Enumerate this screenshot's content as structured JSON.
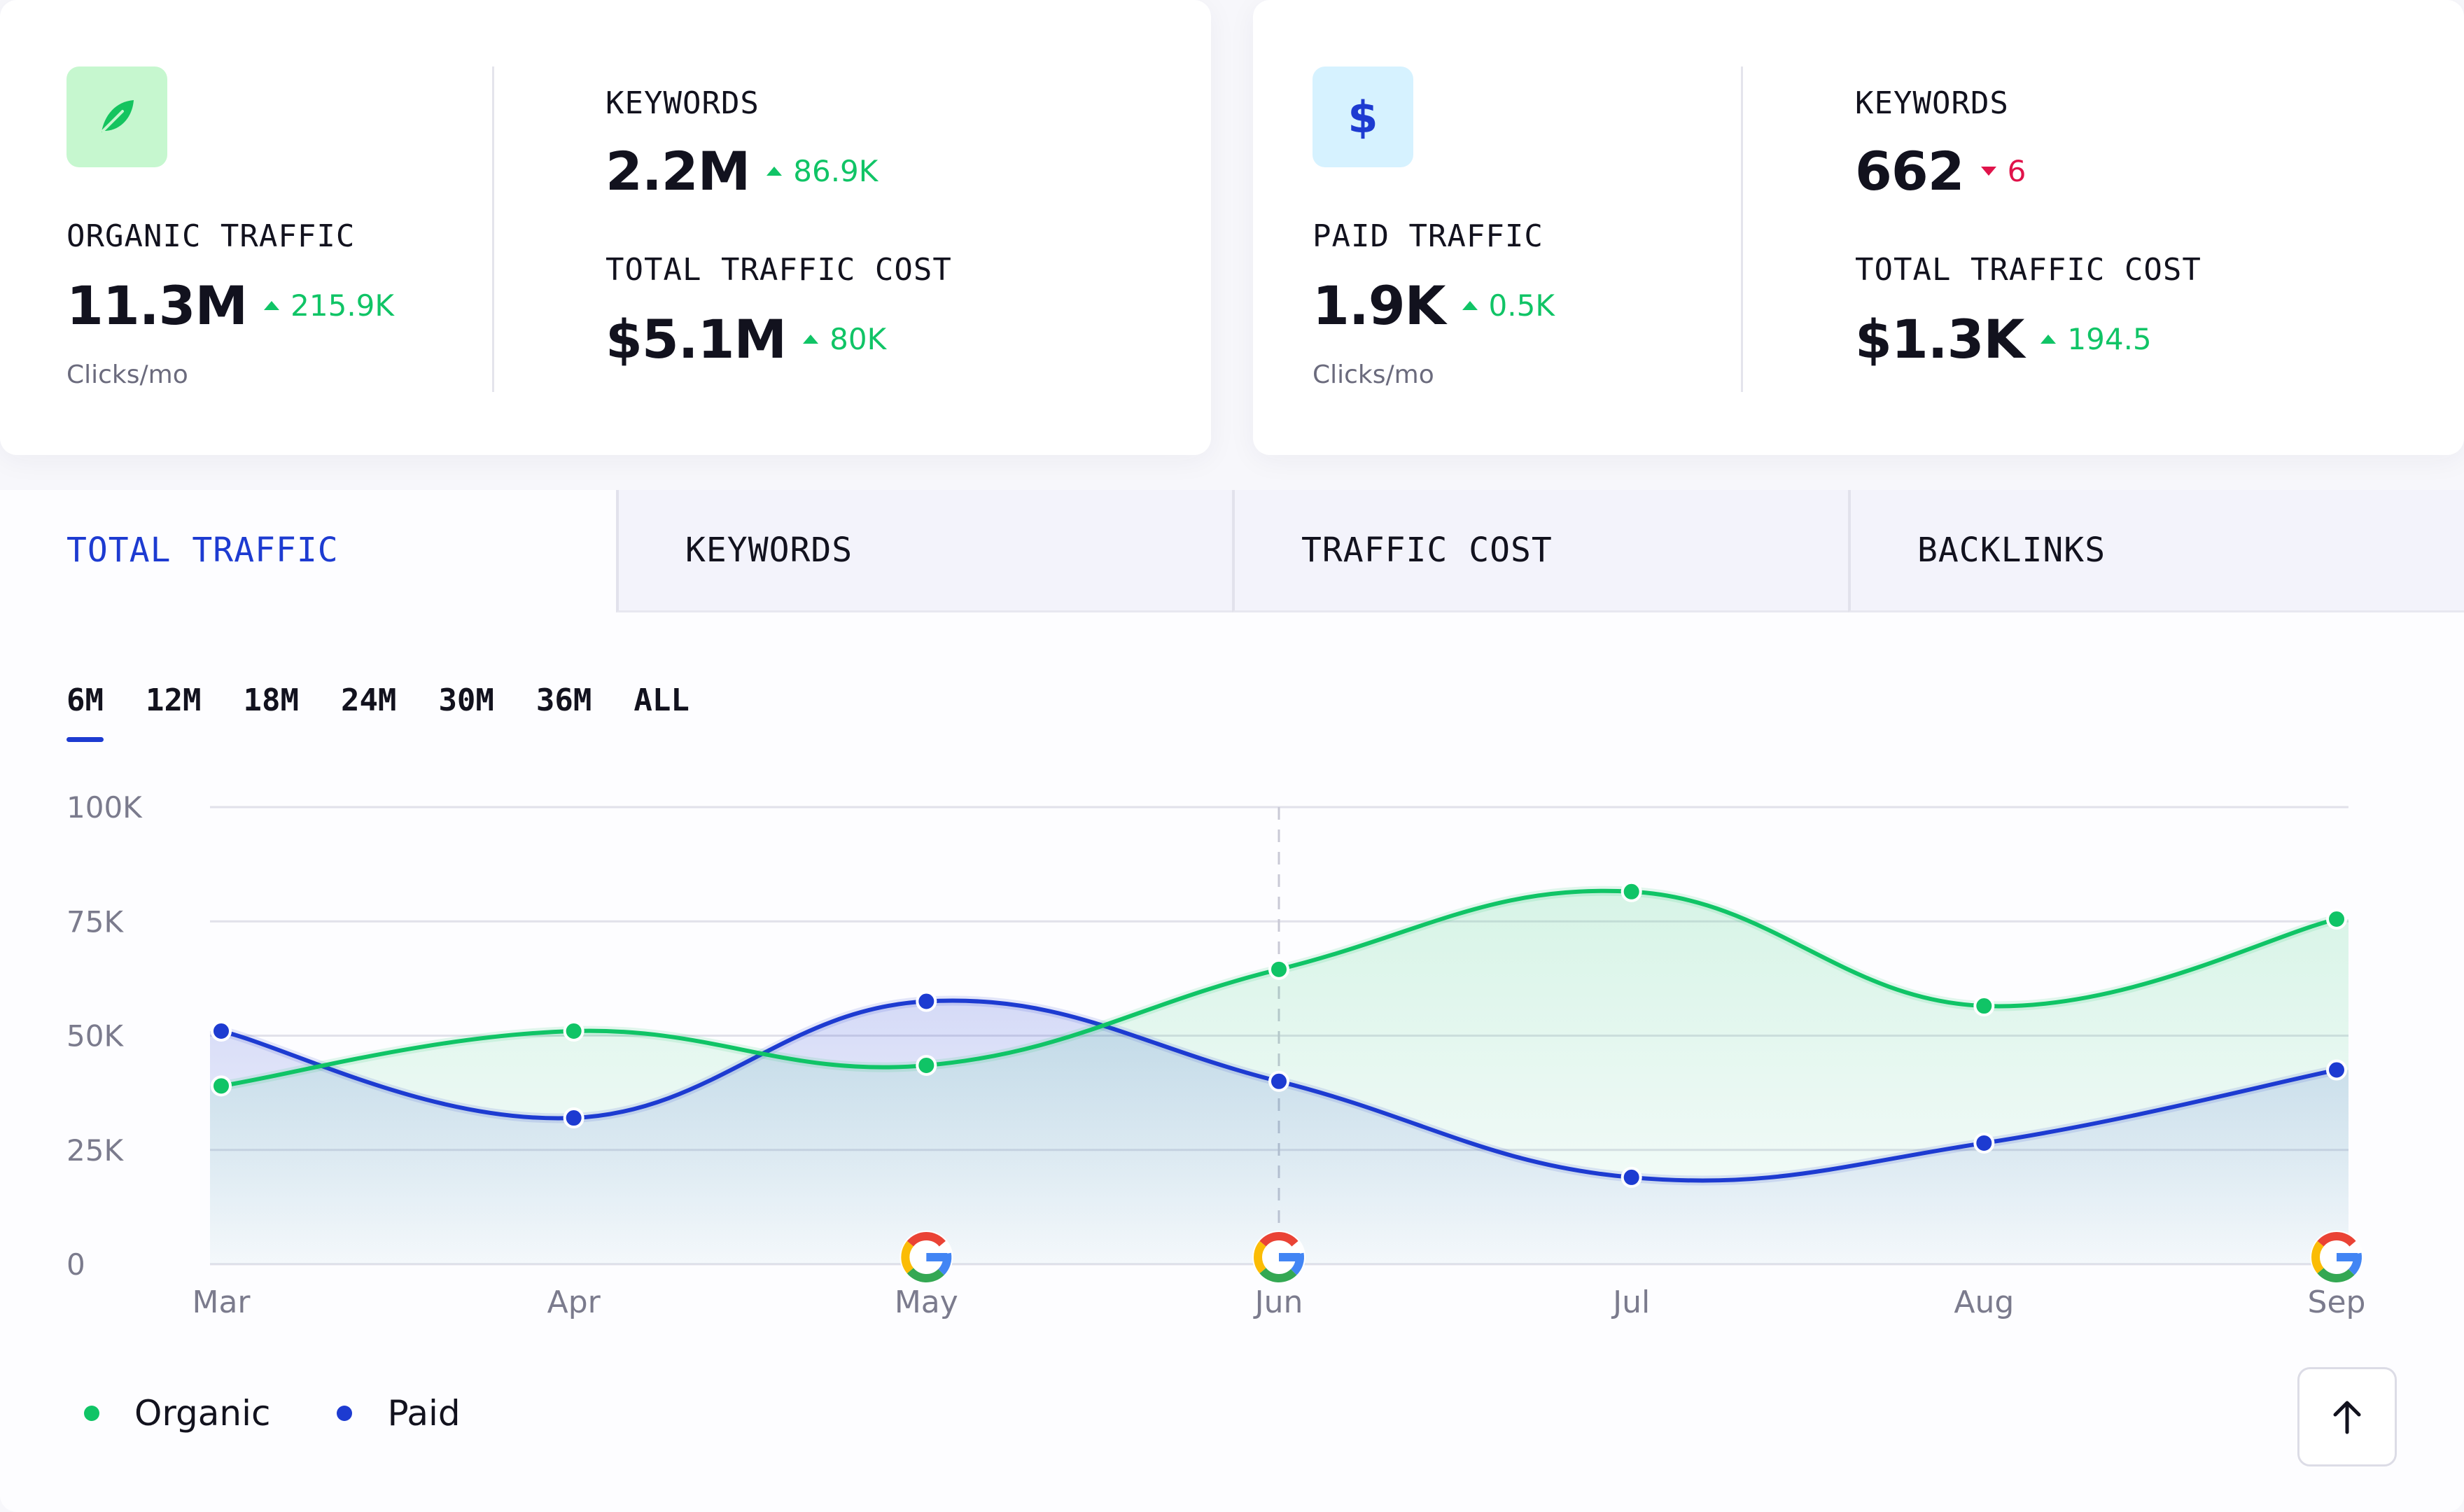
{
  "organic": {
    "label": "ORGANIC TRAFFIC",
    "value": "11.3M",
    "delta": "215.9K",
    "delta_direction": "up",
    "sub": "Clicks/mo",
    "keywords_label": "KEYWORDS",
    "keywords_value": "2.2M",
    "keywords_delta": "86.9K",
    "keywords_delta_direction": "up",
    "cost_label": "TOTAL TRAFFIC COST",
    "cost_value": "$5.1M",
    "cost_delta": "80K",
    "cost_delta_direction": "up",
    "icon": "leaf-icon"
  },
  "paid": {
    "label": "PAID TRAFFIC",
    "value": "1.9K",
    "delta": "0.5K",
    "delta_direction": "up",
    "sub": "Clicks/mo",
    "keywords_label": "KEYWORDS",
    "keywords_value": "662",
    "keywords_delta": "6",
    "keywords_delta_direction": "down",
    "cost_label": "TOTAL TRAFFIC COST",
    "cost_value": "$1.3K",
    "cost_delta": "194.5",
    "cost_delta_direction": "up",
    "icon": "dollar-icon",
    "icon_glyph": "$"
  },
  "tabs": [
    {
      "label": "TOTAL TRAFFIC",
      "active": true
    },
    {
      "label": "KEYWORDS",
      "active": false
    },
    {
      "label": "TRAFFIC COST",
      "active": false
    },
    {
      "label": "BACKLINKS",
      "active": false
    }
  ],
  "time_ranges": [
    {
      "label": "6M",
      "active": true
    },
    {
      "label": "12M",
      "active": false
    },
    {
      "label": "18M",
      "active": false
    },
    {
      "label": "24M",
      "active": false
    },
    {
      "label": "30M",
      "active": false
    },
    {
      "label": "36M",
      "active": false
    },
    {
      "label": "ALL",
      "active": false
    }
  ],
  "chart_data": {
    "type": "area",
    "categories": [
      "Mar",
      "Apr",
      "May",
      "Jun",
      "Jul",
      "Aug",
      "Sep"
    ],
    "y_ticks": [
      "0",
      "25K",
      "50K",
      "75K",
      "100K"
    ],
    "ylim": [
      0,
      100000
    ],
    "series": [
      {
        "name": "Organic",
        "color": "#10c466",
        "values": [
          39000,
          51000,
          43500,
          64500,
          81500,
          56500,
          75500
        ]
      },
      {
        "name": "Paid",
        "color": "#1d3bd1",
        "values": [
          51000,
          32000,
          57500,
          40000,
          19000,
          26500,
          42500
        ]
      }
    ],
    "highlight_category": "Jun",
    "google_update_markers": [
      "May",
      "Jun",
      "Sep"
    ],
    "grid": true
  },
  "legend": [
    {
      "label": "Organic",
      "color": "#10c466"
    },
    {
      "label": "Paid",
      "color": "#1d3bd1"
    }
  ],
  "colors": {
    "accent": "#1d3bd1",
    "positive": "#10c466",
    "negative": "#e0134a"
  },
  "scroll_top_icon": "arrow-up-icon"
}
